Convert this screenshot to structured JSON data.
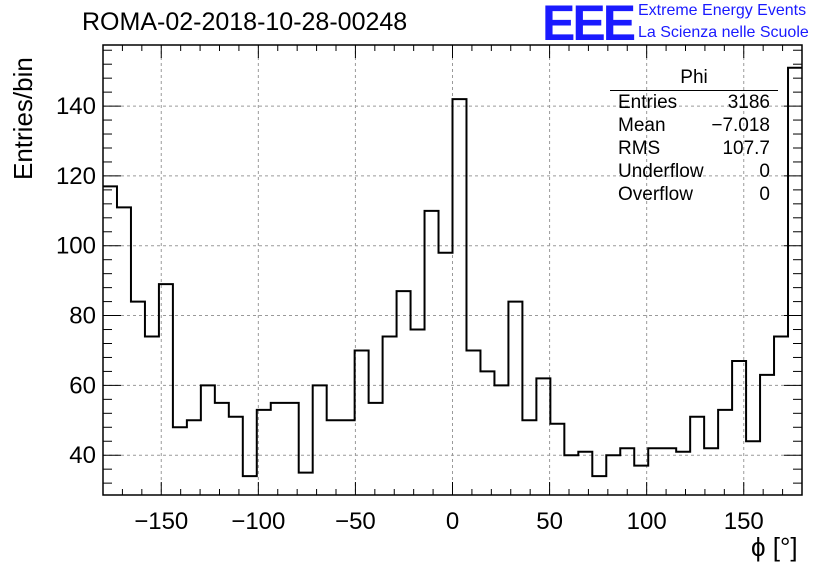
{
  "header": {
    "title": "ROMA-02-2018-10-28-00248",
    "logo_text": "EEE",
    "logo_line1": "Extreme Energy Events",
    "logo_line2": "La Scienza nelle Scuole"
  },
  "stats": {
    "title": "Phi",
    "rows": [
      {
        "label": "Entries",
        "value": "3186"
      },
      {
        "label": "Mean",
        "value": "−7.018"
      },
      {
        "label": "RMS",
        "value": "107.7"
      },
      {
        "label": "Underflow",
        "value": "0"
      },
      {
        "label": "Overflow",
        "value": "0"
      }
    ]
  },
  "chart_data": {
    "type": "histogram",
    "title": "ROMA-02-2018-10-28-00248",
    "xlabel": "ϕ [°]",
    "ylabel": "Entries/bin",
    "xlim": [
      -180,
      180
    ],
    "ylim": [
      28.6,
      157.5
    ],
    "xticks": [
      -150,
      -100,
      -50,
      0,
      50,
      100,
      150
    ],
    "xtick_labels": [
      "−150",
      "−100",
      "−50",
      "0",
      "50",
      "100",
      "150"
    ],
    "yticks": [
      40,
      60,
      80,
      100,
      120,
      140
    ],
    "yticks_minor_step": 4,
    "xticks_minor_step": 10,
    "bin_width": 8.57,
    "values": [
      117,
      111,
      84,
      74,
      89,
      48,
      50,
      60,
      55,
      51,
      34,
      53,
      55,
      55,
      35,
      60,
      50,
      50,
      70,
      55,
      74,
      87,
      76,
      110,
      98,
      142,
      70,
      64,
      60,
      84,
      50,
      62,
      49,
      40,
      41,
      34,
      40,
      42,
      37,
      42,
      42,
      41,
      51,
      42,
      53,
      67,
      44,
      63,
      74,
      151
    ],
    "grid": true,
    "line_color": "#000000"
  }
}
